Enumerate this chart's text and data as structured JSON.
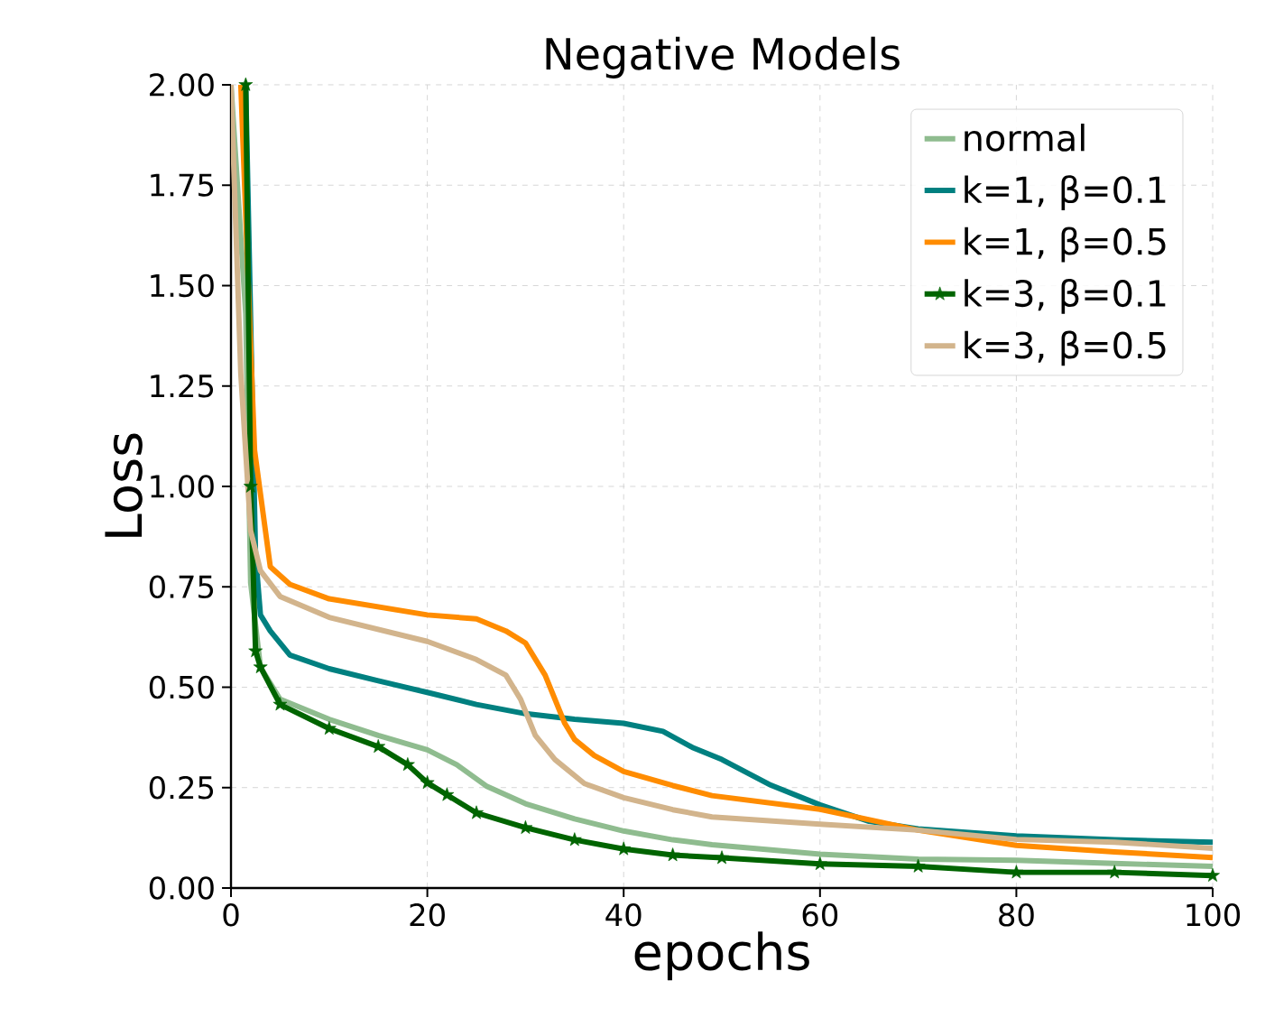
{
  "chart_data": {
    "type": "line",
    "title": "Negative Models",
    "xlabel": "epochs",
    "ylabel": "Loss",
    "xlim": [
      0,
      100
    ],
    "ylim": [
      0,
      2
    ],
    "xticks": [
      0,
      20,
      40,
      60,
      80,
      100
    ],
    "yticks": [
      {
        "value": 0,
        "label": "0.00"
      },
      {
        "value": 0.25,
        "label": "0.25"
      },
      {
        "value": 0.5,
        "label": "0.50"
      },
      {
        "value": 0.75,
        "label": "0.75"
      },
      {
        "value": 1,
        "label": "1.00"
      },
      {
        "value": 1.25,
        "label": "1.25"
      },
      {
        "value": 1.5,
        "label": "1.50"
      },
      {
        "value": 1.75,
        "label": "1.75"
      },
      {
        "value": 2,
        "label": "2.00"
      }
    ],
    "grid": true,
    "legend": "top right",
    "line_style": "solid",
    "series": [
      {
        "name": "normal",
        "color": "#8fbc8f",
        "x": [
          0,
          1.5,
          2,
          3,
          5,
          10,
          15,
          20,
          23,
          26,
          30,
          35,
          40,
          45,
          49,
          60,
          70,
          80,
          90,
          100
        ],
        "values": [
          2.0,
          1.43,
          0.76,
          0.55,
          0.47,
          0.42,
          0.38,
          0.344,
          0.307,
          0.254,
          0.21,
          0.172,
          0.142,
          0.12,
          0.108,
          0.084,
          0.072,
          0.069,
          0.061,
          0.054
        ]
      },
      {
        "name": "k=1, β=0.1",
        "color": "#008080",
        "x": [
          1.5,
          2.5,
          3,
          4,
          6,
          10,
          15,
          20,
          25,
          30,
          35,
          40,
          44,
          47,
          50,
          55,
          60,
          65,
          70,
          80,
          90,
          100
        ],
        "values": [
          2.0,
          0.83,
          0.68,
          0.64,
          0.58,
          0.546,
          0.516,
          0.487,
          0.457,
          0.434,
          0.42,
          0.41,
          0.39,
          0.35,
          0.32,
          0.256,
          0.207,
          0.166,
          0.147,
          0.13,
          0.12,
          0.114
        ]
      },
      {
        "name": "k=1, β=0.5",
        "color": "#ff8c00",
        "x": [
          1,
          2.4,
          4,
          6,
          10,
          15,
          20,
          25,
          28,
          30,
          32,
          34,
          35,
          37,
          40,
          45,
          49,
          60,
          70,
          80,
          90,
          100
        ],
        "values": [
          2.0,
          1.09,
          0.8,
          0.756,
          0.72,
          0.7,
          0.68,
          0.67,
          0.64,
          0.61,
          0.53,
          0.41,
          0.37,
          0.33,
          0.29,
          0.255,
          0.23,
          0.196,
          0.144,
          0.106,
          0.09,
          0.076
        ]
      },
      {
        "name": "k=3, β=0.1",
        "color": "#006400",
        "marker": "star",
        "x": [
          1.5,
          2,
          2.5,
          3,
          5,
          10,
          15,
          18,
          20,
          22,
          25,
          30,
          35,
          40,
          45,
          50,
          60,
          70,
          80,
          90,
          100
        ],
        "values": [
          2.0,
          1.0,
          0.59,
          0.55,
          0.457,
          0.397,
          0.352,
          0.307,
          0.262,
          0.232,
          0.187,
          0.15,
          0.12,
          0.097,
          0.082,
          0.075,
          0.06,
          0.054,
          0.039,
          0.039,
          0.031
        ]
      },
      {
        "name": "k=3, β=0.5",
        "color": "#d2b48c",
        "x": [
          0,
          1,
          2,
          3,
          5,
          10,
          15,
          20,
          25,
          28,
          29.5,
          31,
          33,
          36,
          40,
          45,
          49,
          60,
          70,
          80,
          90,
          100
        ],
        "values": [
          2.0,
          1.28,
          0.89,
          0.79,
          0.726,
          0.674,
          0.644,
          0.614,
          0.569,
          0.53,
          0.47,
          0.38,
          0.32,
          0.26,
          0.225,
          0.195,
          0.177,
          0.159,
          0.144,
          0.121,
          0.114,
          0.099
        ]
      }
    ]
  }
}
